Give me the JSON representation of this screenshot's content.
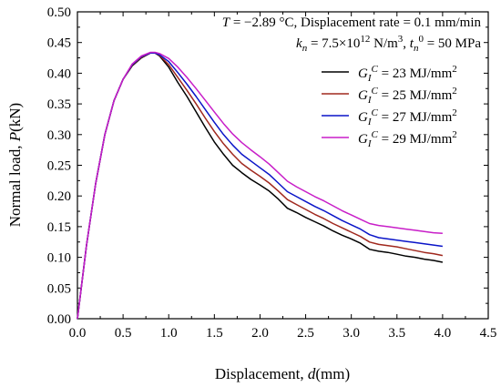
{
  "chart_data": {
    "type": "line",
    "xlabel": {
      "text": "Displacement, ",
      "var": "d",
      "unit": "(mm)"
    },
    "ylabel": {
      "text": "Normal load, ",
      "var": "P",
      "unit": "(kN)"
    },
    "xlim": [
      0,
      4.5
    ],
    "ylim": [
      0,
      0.5
    ],
    "xticks": [
      "0.0",
      "0.5",
      "1.0",
      "1.5",
      "2.0",
      "2.5",
      "3.0",
      "3.5",
      "4.0",
      "4.5"
    ],
    "yticks": [
      "0.00",
      "0.05",
      "0.10",
      "0.15",
      "0.20",
      "0.25",
      "0.30",
      "0.35",
      "0.40",
      "0.45",
      "0.50"
    ],
    "annotation_line1": "T = −2.89 °C, Displacement rate = 0.1 mm/min",
    "annotation_line2": "kn = 7.5×10^12 N/m^3, tn^0 = 50 MPa",
    "legend_position": "upper-right",
    "grid": false,
    "series": [
      {
        "name": "GI^C = 23 MJ/mm^2",
        "color": "#000000",
        "x": [
          0,
          0.05,
          0.1,
          0.2,
          0.3,
          0.4,
          0.5,
          0.6,
          0.7,
          0.8,
          0.85,
          0.9,
          1.0,
          1.1,
          1.2,
          1.3,
          1.4,
          1.5,
          1.6,
          1.7,
          1.8,
          1.9,
          2.0,
          2.1,
          2.2,
          2.3,
          2.4,
          2.5,
          2.6,
          2.7,
          2.8,
          2.9,
          3.0,
          3.1,
          3.2,
          3.3,
          3.4,
          3.5,
          3.6,
          3.7,
          3.8,
          3.9,
          4.0
        ],
        "y": [
          0,
          0.06,
          0.12,
          0.22,
          0.3,
          0.355,
          0.39,
          0.412,
          0.425,
          0.433,
          0.433,
          0.428,
          0.41,
          0.385,
          0.362,
          0.337,
          0.312,
          0.288,
          0.268,
          0.25,
          0.238,
          0.227,
          0.218,
          0.208,
          0.195,
          0.18,
          0.173,
          0.165,
          0.158,
          0.151,
          0.143,
          0.136,
          0.13,
          0.123,
          0.113,
          0.11,
          0.108,
          0.105,
          0.102,
          0.1,
          0.097,
          0.095,
          0.092
        ]
      },
      {
        "name": "GI^C = 25 MJ/mm^2",
        "color": "#a0281e",
        "x": [
          0,
          0.05,
          0.1,
          0.2,
          0.3,
          0.4,
          0.5,
          0.6,
          0.7,
          0.8,
          0.85,
          0.9,
          1.0,
          1.1,
          1.2,
          1.3,
          1.4,
          1.5,
          1.6,
          1.7,
          1.8,
          1.9,
          2.0,
          2.1,
          2.2,
          2.3,
          2.4,
          2.5,
          2.6,
          2.7,
          2.8,
          2.9,
          3.0,
          3.1,
          3.2,
          3.3,
          3.4,
          3.5,
          3.6,
          3.7,
          3.8,
          3.9,
          4.0
        ],
        "y": [
          0,
          0.06,
          0.12,
          0.22,
          0.3,
          0.355,
          0.39,
          0.413,
          0.426,
          0.433,
          0.433,
          0.429,
          0.414,
          0.393,
          0.372,
          0.35,
          0.327,
          0.305,
          0.285,
          0.268,
          0.253,
          0.242,
          0.232,
          0.221,
          0.208,
          0.194,
          0.186,
          0.178,
          0.17,
          0.163,
          0.155,
          0.148,
          0.141,
          0.134,
          0.125,
          0.121,
          0.119,
          0.117,
          0.114,
          0.111,
          0.108,
          0.106,
          0.103
        ]
      },
      {
        "name": "GI^C = 27 MJ/mm^2",
        "color": "#0a14c8",
        "x": [
          0,
          0.05,
          0.1,
          0.2,
          0.3,
          0.4,
          0.5,
          0.6,
          0.7,
          0.8,
          0.85,
          0.9,
          1.0,
          1.1,
          1.2,
          1.3,
          1.4,
          1.5,
          1.6,
          1.7,
          1.8,
          1.9,
          2.0,
          2.1,
          2.2,
          2.3,
          2.4,
          2.5,
          2.6,
          2.7,
          2.8,
          2.9,
          3.0,
          3.1,
          3.2,
          3.3,
          3.4,
          3.5,
          3.6,
          3.7,
          3.8,
          3.9,
          4.0
        ],
        "y": [
          0,
          0.06,
          0.12,
          0.22,
          0.3,
          0.355,
          0.39,
          0.414,
          0.427,
          0.433,
          0.433,
          0.43,
          0.419,
          0.401,
          0.382,
          0.362,
          0.341,
          0.32,
          0.3,
          0.283,
          0.268,
          0.257,
          0.246,
          0.235,
          0.221,
          0.207,
          0.199,
          0.191,
          0.183,
          0.176,
          0.168,
          0.16,
          0.153,
          0.146,
          0.137,
          0.132,
          0.13,
          0.128,
          0.126,
          0.124,
          0.122,
          0.12,
          0.118
        ]
      },
      {
        "name": "GI^C = 29 MJ/mm^2",
        "color": "#c81ec8",
        "x": [
          0,
          0.05,
          0.1,
          0.2,
          0.3,
          0.4,
          0.5,
          0.6,
          0.7,
          0.8,
          0.85,
          0.9,
          1.0,
          1.1,
          1.2,
          1.3,
          1.4,
          1.5,
          1.6,
          1.7,
          1.8,
          1.9,
          2.0,
          2.1,
          2.2,
          2.3,
          2.4,
          2.5,
          2.6,
          2.7,
          2.8,
          2.9,
          3.0,
          3.1,
          3.2,
          3.3,
          3.4,
          3.5,
          3.6,
          3.7,
          3.8,
          3.9,
          4.0
        ],
        "y": [
          0,
          0.06,
          0.12,
          0.22,
          0.3,
          0.355,
          0.39,
          0.415,
          0.428,
          0.434,
          0.434,
          0.432,
          0.424,
          0.41,
          0.393,
          0.375,
          0.356,
          0.337,
          0.318,
          0.301,
          0.287,
          0.275,
          0.264,
          0.252,
          0.238,
          0.224,
          0.215,
          0.207,
          0.199,
          0.192,
          0.184,
          0.176,
          0.169,
          0.162,
          0.155,
          0.152,
          0.15,
          0.148,
          0.146,
          0.144,
          0.142,
          0.14,
          0.139
        ]
      }
    ]
  }
}
